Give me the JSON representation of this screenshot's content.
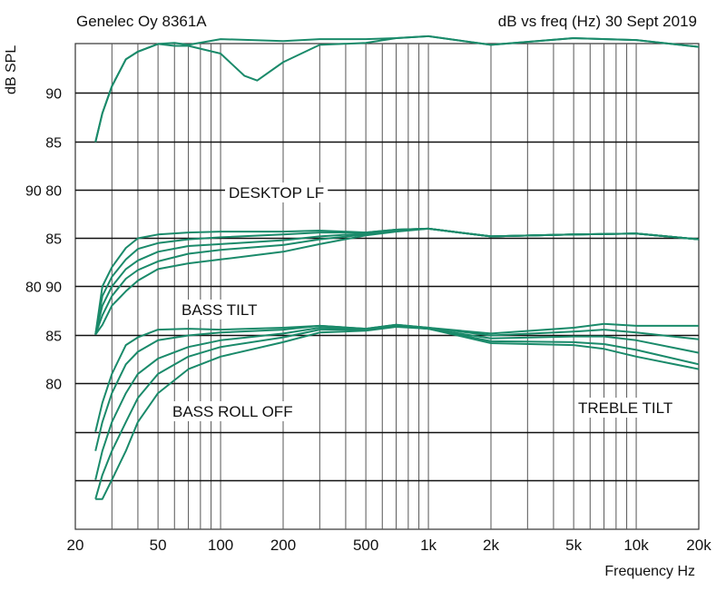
{
  "chart_data": {
    "type": "line",
    "title_left": "Genelec Oy 8361A",
    "title_right": "dB vs freq (Hz) 30 Sept 2019",
    "ylabel": "dB SPL",
    "xlabel": "Frequency Hz",
    "xscale": "log",
    "xlim": [
      20,
      20000
    ],
    "x_ticks": [
      {
        "value": 20,
        "label": "20"
      },
      {
        "value": 50,
        "label": "50"
      },
      {
        "value": 100,
        "label": "100"
      },
      {
        "value": 200,
        "label": "200"
      },
      {
        "value": 500,
        "label": "500"
      },
      {
        "value": 1000,
        "label": "1k"
      },
      {
        "value": 2000,
        "label": "2k"
      },
      {
        "value": 5000,
        "label": "5k"
      },
      {
        "value": 10000,
        "label": "10k"
      },
      {
        "value": 20000,
        "label": "20k"
      }
    ],
    "y_tick_labels": [
      "90",
      "85",
      "90 80",
      "85",
      "80 90",
      "85",
      "80"
    ],
    "grid": true,
    "line_color": "#1a8a6a",
    "annotations": [
      "DESKTOP LF",
      "BASS TILT",
      "BASS ROLL OFF",
      "TREBLE TILT"
    ],
    "groups": [
      {
        "name": "DESKTOP LF",
        "series": [
          {
            "x": [
              25,
              27,
              30,
              35,
              40,
              50,
              60,
              70,
              100,
              200,
              300,
              500,
              700,
              1000,
              2000,
              5000,
              10000,
              20000
            ],
            "y": [
              85.0,
              88.0,
              90.8,
              93.6,
              94.4,
              95.2,
              95.3,
              95.1,
              95.7,
              95.5,
              95.7,
              95.7,
              95.8,
              96.0,
              95.1,
              95.8,
              95.6,
              94.9
            ]
          },
          {
            "x": [
              25,
              27,
              30,
              35,
              40,
              50,
              60,
              70,
              100,
              130,
              150,
              200,
              300,
              500,
              700,
              1000,
              2000,
              5000,
              10000,
              20000
            ],
            "y": [
              85.0,
              88.0,
              90.8,
              93.6,
              94.4,
              95.2,
              95.0,
              95.0,
              94.2,
              91.9,
              91.4,
              93.3,
              95.1,
              95.3,
              95.8,
              96.0,
              95.1,
              95.8,
              95.6,
              94.9
            ]
          }
        ]
      },
      {
        "name": "BASS TILT",
        "series": [
          {
            "x": [
              25,
              27,
              30,
              35,
              40,
              50,
              70,
              100,
              200,
              300,
              500,
              700,
              1000,
              2000,
              5000,
              10000,
              20000
            ],
            "y": [
              75.0,
              80.0,
              82.0,
              84.0,
              85.0,
              85.4,
              85.6,
              85.7,
              85.7,
              85.8,
              85.6,
              85.9,
              86.0,
              85.2,
              85.4,
              85.5,
              84.9
            ]
          },
          {
            "x": [
              25,
              27,
              30,
              35,
              40,
              50,
              70,
              100,
              200,
              300,
              500,
              700,
              1000,
              2000,
              5000,
              10000,
              20000
            ],
            "y": [
              75.0,
              79.0,
              81.0,
              82.8,
              83.9,
              84.5,
              84.9,
              85.1,
              85.4,
              85.6,
              85.6,
              85.9,
              86.0,
              85.2,
              85.4,
              85.5,
              84.9
            ]
          },
          {
            "x": [
              25,
              27,
              30,
              35,
              40,
              50,
              70,
              100,
              200,
              300,
              500,
              700,
              1000,
              2000,
              5000,
              10000,
              20000
            ],
            "y": [
              75.0,
              78.0,
              80.0,
              81.8,
              82.7,
              83.6,
              84.2,
              84.4,
              84.8,
              85.2,
              85.5,
              85.9,
              86.0,
              85.2,
              85.4,
              85.5,
              84.9
            ]
          },
          {
            "x": [
              25,
              27,
              30,
              35,
              40,
              50,
              70,
              100,
              200,
              300,
              500,
              700,
              1000,
              2000,
              5000,
              10000,
              20000
            ],
            "y": [
              75.0,
              77.0,
              79.0,
              80.8,
              81.7,
              82.6,
              83.4,
              83.8,
              84.3,
              84.9,
              85.4,
              85.8,
              86.0,
              85.2,
              85.4,
              85.5,
              84.9
            ]
          },
          {
            "x": [
              25,
              27,
              30,
              35,
              40,
              50,
              70,
              100,
              200,
              300,
              500,
              700,
              1000,
              2000,
              5000,
              10000,
              20000
            ],
            "y": [
              75.0,
              76.0,
              78.0,
              79.5,
              80.6,
              81.8,
              82.4,
              82.8,
              83.6,
              84.4,
              85.3,
              85.7,
              86.0,
              85.2,
              85.4,
              85.5,
              84.9
            ]
          }
        ]
      },
      {
        "name": "BASS ROLL OFF / TREBLE TILT",
        "series": [
          {
            "x": [
              25,
              27,
              30,
              35,
              40,
              50,
              70,
              100,
              200,
              300,
              500,
              700,
              1000,
              2000,
              5000,
              7000,
              10000,
              20000
            ],
            "y": [
              75.0,
              78.0,
              81.0,
              84.0,
              84.8,
              85.6,
              85.7,
              85.6,
              85.8,
              86.0,
              85.7,
              86.1,
              85.8,
              85.2,
              85.8,
              86.2,
              86.0,
              86.0
            ]
          },
          {
            "x": [
              25,
              27,
              30,
              35,
              40,
              50,
              70,
              100,
              200,
              300,
              500,
              700,
              1000,
              2000,
              5000,
              7000,
              10000,
              20000
            ],
            "y": [
              73.0,
              76.0,
              79.0,
              82.0,
              83.3,
              84.5,
              85.0,
              85.3,
              85.6,
              86.0,
              85.7,
              86.1,
              85.8,
              85.0,
              85.4,
              85.6,
              85.3,
              84.6
            ]
          },
          {
            "x": [
              25,
              27,
              30,
              35,
              40,
              50,
              70,
              100,
              200,
              300,
              500,
              700,
              1000,
              2000,
              5000,
              7000,
              10000,
              20000
            ],
            "y": [
              70.0,
              73.0,
              76.0,
              79.0,
              81.0,
              82.6,
              83.8,
              84.5,
              85.2,
              85.8,
              85.6,
              86.0,
              85.7,
              84.7,
              84.9,
              84.9,
              84.5,
              83.2
            ]
          },
          {
            "x": [
              25,
              27,
              30,
              35,
              40,
              50,
              70,
              100,
              200,
              300,
              500,
              700,
              1000,
              2000,
              5000,
              7000,
              10000,
              20000
            ],
            "y": [
              68.0,
              70.5,
              73.0,
              76.0,
              78.5,
              81.0,
              82.8,
              83.8,
              84.8,
              85.6,
              85.6,
              86.0,
              85.7,
              84.4,
              84.3,
              84.1,
              83.5,
              82.0
            ]
          },
          {
            "x": [
              25,
              27,
              30,
              35,
              40,
              50,
              70,
              100,
              200,
              300,
              500,
              700,
              1000,
              2000,
              5000,
              7000,
              10000,
              20000
            ],
            "y": [
              68.0,
              68.0,
              70.0,
              73.0,
              76.0,
              79.0,
              81.5,
              82.8,
              84.3,
              85.3,
              85.5,
              85.9,
              85.7,
              84.2,
              84.0,
              83.6,
              82.8,
              81.5
            ]
          }
        ]
      }
    ]
  }
}
